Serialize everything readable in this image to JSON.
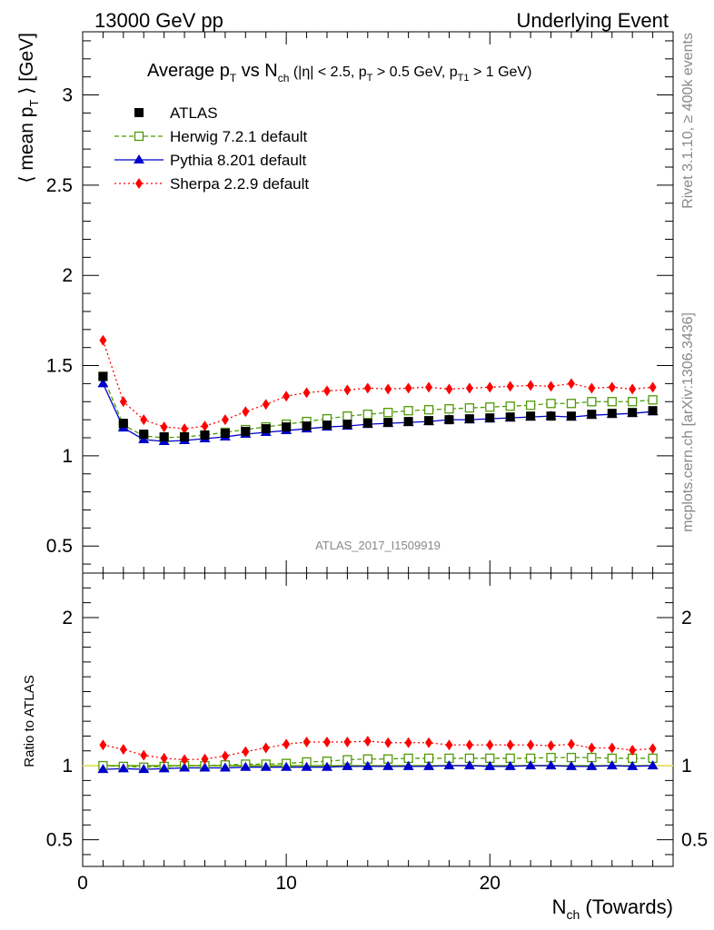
{
  "header": {
    "left": "13000 GeV pp",
    "right": "Underlying Event"
  },
  "side_text": {
    "rivet": "Rivet 3.1.10, ≥ 400k events",
    "mcplots": "mcplots.cern.ch [arXiv:1306.3436]"
  },
  "analysis_id": "ATLAS_2017_I1509919",
  "chart_data": [
    {
      "type": "line",
      "panel": "main",
      "title": "Average pT vs Nch (|η| < 2.5, pT > 0.5 GeV, pT1 > 1 GeV)",
      "ylabel": "⟨ mean pT ⟩ [GeV]",
      "xlim": [
        0,
        29
      ],
      "ylim": [
        0.35,
        3.35
      ],
      "yticks": [
        0.5,
        1,
        1.5,
        2,
        2.5,
        3
      ],
      "ytick_labels": [
        "0.5",
        "1",
        "1.5",
        "2",
        "2.5",
        "3"
      ],
      "legend_position": "top-left",
      "x": [
        1,
        2,
        3,
        4,
        5,
        6,
        7,
        8,
        9,
        10,
        11,
        12,
        13,
        14,
        15,
        16,
        17,
        18,
        19,
        20,
        21,
        22,
        23,
        24,
        25,
        26,
        27,
        28
      ],
      "series": [
        {
          "name": "ATLAS",
          "color": "#000000",
          "marker": "filled-square",
          "line": "none",
          "values": [
            1.44,
            1.18,
            1.12,
            1.105,
            1.105,
            1.115,
            1.125,
            1.135,
            1.15,
            1.16,
            1.165,
            1.17,
            1.175,
            1.18,
            1.185,
            1.19,
            1.195,
            1.2,
            1.205,
            1.21,
            1.215,
            1.22,
            1.22,
            1.22,
            1.23,
            1.235,
            1.24,
            1.25
          ]
        },
        {
          "name": "Herwig 7.2.1 default",
          "color": "#4e9a06",
          "marker": "open-square",
          "line": "dashed",
          "values": [
            1.44,
            1.17,
            1.11,
            1.1,
            1.105,
            1.115,
            1.13,
            1.145,
            1.16,
            1.175,
            1.19,
            1.205,
            1.22,
            1.23,
            1.24,
            1.25,
            1.255,
            1.26,
            1.265,
            1.27,
            1.275,
            1.28,
            1.29,
            1.29,
            1.3,
            1.3,
            1.3,
            1.31
          ]
        },
        {
          "name": "Pythia 8.201 default",
          "color": "#0000cc",
          "marker": "filled-triangle",
          "line": "solid",
          "values": [
            1.4,
            1.155,
            1.09,
            1.08,
            1.085,
            1.095,
            1.105,
            1.12,
            1.13,
            1.14,
            1.15,
            1.16,
            1.165,
            1.175,
            1.18,
            1.185,
            1.19,
            1.2,
            1.2,
            1.205,
            1.21,
            1.215,
            1.22,
            1.215,
            1.225,
            1.23,
            1.235,
            1.245
          ]
        },
        {
          "name": "Sherpa 2.2.9 default",
          "color": "#ff0000",
          "marker": "filled-diamond",
          "line": "dotted",
          "values": [
            1.64,
            1.3,
            1.2,
            1.16,
            1.15,
            1.165,
            1.2,
            1.245,
            1.285,
            1.33,
            1.35,
            1.36,
            1.365,
            1.375,
            1.37,
            1.375,
            1.38,
            1.37,
            1.375,
            1.38,
            1.385,
            1.39,
            1.385,
            1.4,
            1.375,
            1.38,
            1.37,
            1.38
          ]
        }
      ]
    },
    {
      "type": "line",
      "panel": "ratio",
      "ylabel": "Ratio to ATLAS",
      "xlabel": "Nch (Towards)",
      "xlim": [
        0,
        29
      ],
      "xticks": [
        0,
        10,
        20
      ],
      "xtick_labels": [
        "0",
        "10",
        "20"
      ],
      "ylim": [
        0.32,
        2.3
      ],
      "yticks": [
        0.5,
        1,
        2
      ],
      "ytick_labels": [
        "0.5",
        "1",
        "2"
      ],
      "x": [
        1,
        2,
        3,
        4,
        5,
        6,
        7,
        8,
        9,
        10,
        11,
        12,
        13,
        14,
        15,
        16,
        17,
        18,
        19,
        20,
        21,
        22,
        23,
        24,
        25,
        26,
        27,
        28
      ],
      "series": [
        {
          "name": "ATLAS",
          "color": "#4e9a06",
          "marker": "none",
          "line": "solid",
          "values": [
            1,
            1,
            1,
            1,
            1,
            1,
            1,
            1,
            1,
            1,
            1,
            1,
            1,
            1,
            1,
            1,
            1,
            1,
            1,
            1,
            1,
            1,
            1,
            1,
            1,
            1,
            1,
            1
          ]
        },
        {
          "name": "Herwig 7.2.1 default",
          "color": "#4e9a06",
          "marker": "open-square",
          "line": "dashed",
          "values": [
            1.0,
            0.995,
            0.99,
            0.995,
            1.0,
            1.0,
            1.005,
            1.01,
            1.01,
            1.015,
            1.025,
            1.03,
            1.04,
            1.045,
            1.045,
            1.05,
            1.05,
            1.05,
            1.05,
            1.05,
            1.05,
            1.05,
            1.055,
            1.055,
            1.055,
            1.05,
            1.05,
            1.05
          ]
        },
        {
          "name": "Pythia 8.201 default",
          "color": "#0000cc",
          "marker": "filled-triangle",
          "line": "solid",
          "values": [
            0.975,
            0.98,
            0.975,
            0.98,
            0.985,
            0.985,
            0.985,
            0.99,
            0.99,
            0.99,
            0.99,
            0.99,
            0.995,
            0.995,
            0.995,
            0.995,
            0.995,
            1.0,
            1.0,
            0.995,
            0.995,
            1.0,
            1.0,
            0.995,
            0.995,
            1.0,
            0.995,
            1.0
          ]
        },
        {
          "name": "Sherpa 2.2.9 default",
          "color": "#ff0000",
          "marker": "filled-diamond",
          "line": "dotted",
          "values": [
            1.14,
            1.11,
            1.07,
            1.05,
            1.04,
            1.045,
            1.065,
            1.095,
            1.12,
            1.145,
            1.16,
            1.16,
            1.16,
            1.165,
            1.155,
            1.155,
            1.155,
            1.14,
            1.14,
            1.14,
            1.14,
            1.14,
            1.135,
            1.145,
            1.12,
            1.12,
            1.105,
            1.115
          ]
        }
      ]
    }
  ]
}
